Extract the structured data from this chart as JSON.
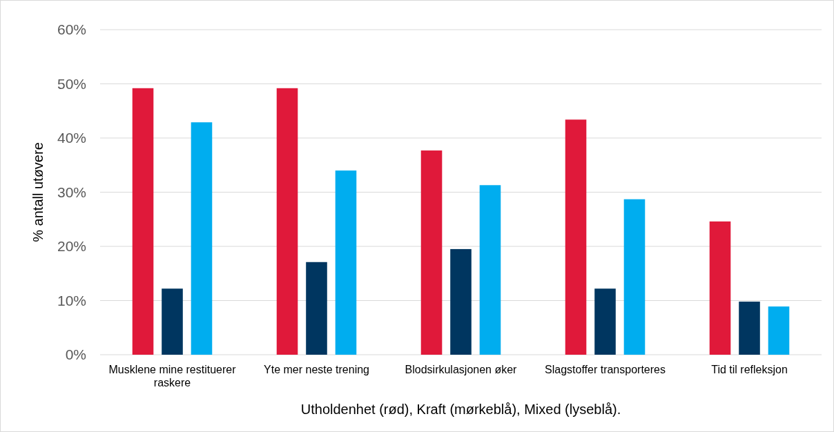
{
  "chart_data": {
    "type": "bar",
    "categories": [
      "Musklene mine restituerer raskere",
      "Yte mer neste trening",
      "Blodsirkulasjonen øker",
      "Slagstoffer transporteres",
      "Tid til refleksjon"
    ],
    "series": [
      {
        "color": "#e0193a",
        "values": [
          49.2,
          49.2,
          37.7,
          43.4,
          24.6
        ]
      },
      {
        "color": "#003660",
        "values": [
          12.2,
          17.1,
          19.5,
          12.2,
          9.8
        ]
      },
      {
        "color": "#00adef",
        "values": [
          42.9,
          34.0,
          31.3,
          28.7,
          8.9
        ]
      }
    ],
    "ylim": [
      0,
      60
    ],
    "yticks": [
      {
        "value": 0,
        "label": "0%"
      },
      {
        "value": 10,
        "label": "10%"
      },
      {
        "value": 20,
        "label": "20%"
      },
      {
        "value": 30,
        "label": "30%"
      },
      {
        "value": 40,
        "label": "40%"
      },
      {
        "value": 50,
        "label": "50%"
      },
      {
        "value": 60,
        "label": "60%"
      }
    ],
    "ylabel": "% antall utøvere",
    "xlabel": "Utholdenhet (rød), Kraft (mørkeblå), Mixed (lyseblå).",
    "grid": "y"
  }
}
